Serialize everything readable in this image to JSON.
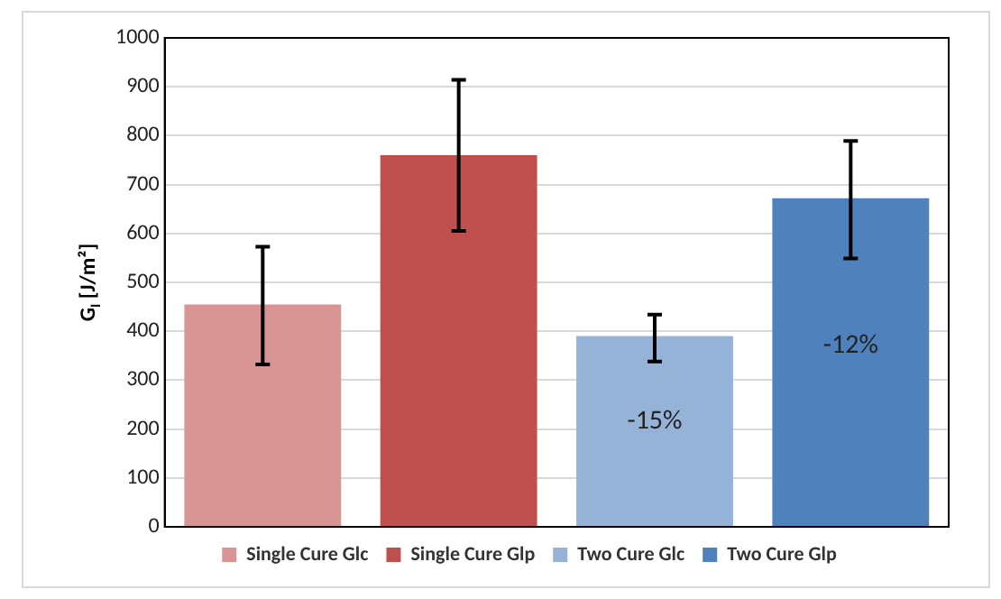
{
  "chart_data": {
    "type": "bar",
    "ylabel": "G$_{I}$ [J/m²]",
    "categories": [
      null,
      null,
      null,
      null
    ],
    "series": [
      {
        "name": "Single Cure Glc",
        "color": "#d99594",
        "values": [
          455,
          null,
          null,
          null
        ],
        "errors": [
          [
            332,
            573
          ],
          null,
          null,
          null
        ]
      },
      {
        "name": "Single Cure Glp",
        "color": "#c0504d",
        "values": [
          null,
          760,
          null,
          null
        ],
        "errors": [
          null,
          [
            605,
            914
          ],
          null,
          null
        ]
      },
      {
        "name": "Two Cure Glc",
        "color": "#95b3d7",
        "values": [
          null,
          null,
          390,
          null
        ],
        "errors": [
          null,
          null,
          [
            338,
            434
          ],
          null
        ]
      },
      {
        "name": "Two Cure Glp",
        "color": "#4f81bd",
        "values": [
          null,
          null,
          null,
          672
        ],
        "errors": [
          null,
          null,
          null,
          [
            549,
            789
          ]
        ]
      }
    ],
    "ylim": [
      0,
      1000
    ],
    "yticks": [
      0,
      100,
      200,
      300,
      400,
      500,
      600,
      700,
      800,
      900,
      1000
    ],
    "tick_labels": "y",
    "grid": "y",
    "legend": "bottom",
    "annotations": [
      "-15%",
      "-12%"
    ]
  }
}
